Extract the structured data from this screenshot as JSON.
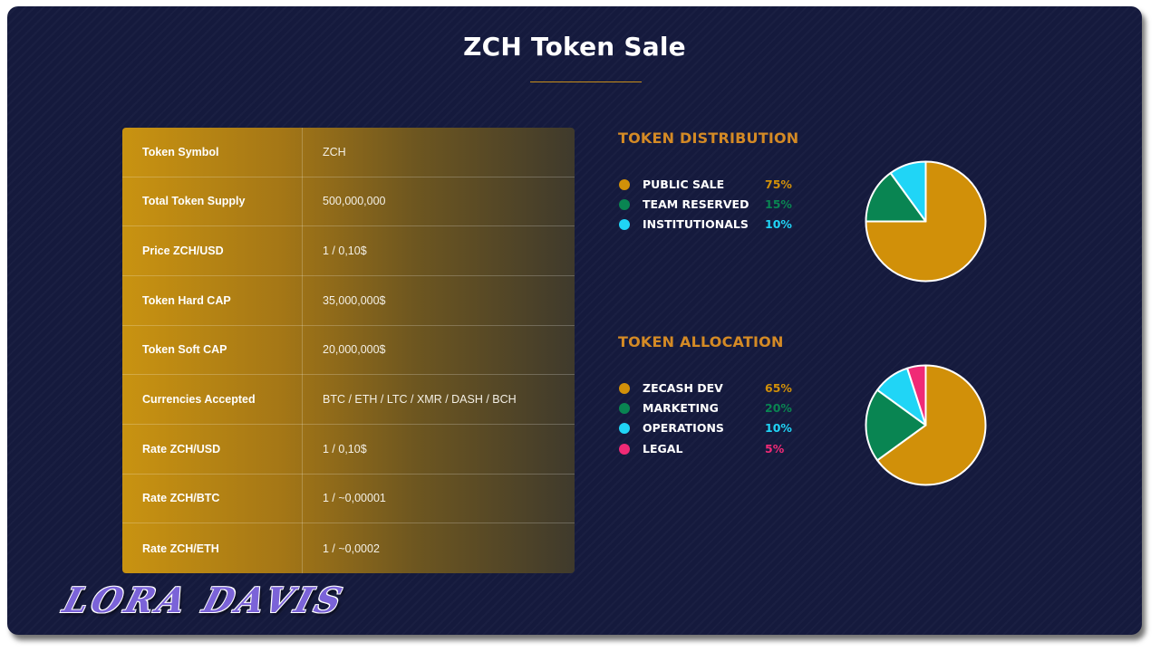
{
  "page": {
    "title": "ZCH Token Sale"
  },
  "token_table": {
    "rows": [
      {
        "label": "Token Symbol",
        "value": "ZCH"
      },
      {
        "label": "Total Token Supply",
        "value": "500,000,000"
      },
      {
        "label": "Price ZCH/USD",
        "value": "1 / 0,10$"
      },
      {
        "label": "Token Hard CAP",
        "value": "35,000,000$"
      },
      {
        "label": "Token Soft CAP",
        "value": "20,000,000$"
      },
      {
        "label": "Currencies Accepted",
        "value": "BTC / ETH / LTC / XMR / DASH / BCH"
      },
      {
        "label": "Rate ZCH/USD",
        "value": "1 / 0,10$"
      },
      {
        "label": "Rate ZCH/BTC",
        "value": "1 / ~0,00001"
      },
      {
        "label": "Rate ZCH/ETH",
        "value": "1 / ~0,0002"
      }
    ]
  },
  "distribution": {
    "title": "TOKEN DISTRIBUTION",
    "items": [
      {
        "label": "PUBLIC SALE",
        "percent": "75%",
        "value": 75,
        "color": "#d19009"
      },
      {
        "label": "TEAM RESERVED",
        "percent": "15%",
        "value": 15,
        "color": "#098552"
      },
      {
        "label": "INSTITUTIONALS",
        "percent": "10%",
        "value": 10,
        "color": "#20d5f6"
      }
    ]
  },
  "allocation": {
    "title": "TOKEN ALLOCATION",
    "items": [
      {
        "label": "ZECASH DEV",
        "percent": "65%",
        "value": 65,
        "color": "#d19009"
      },
      {
        "label": "MARKETING",
        "percent": "20%",
        "value": 20,
        "color": "#098552"
      },
      {
        "label": "OPERATIONS",
        "percent": "10%",
        "value": 10,
        "color": "#20d5f6"
      },
      {
        "label": "LEGAL",
        "percent": "5%",
        "value": 5,
        "color": "#f02a76"
      }
    ]
  },
  "chart_data": [
    {
      "type": "pie",
      "title": "TOKEN DISTRIBUTION",
      "categories": [
        "PUBLIC SALE",
        "TEAM RESERVED",
        "INSTITUTIONALS"
      ],
      "values": [
        75,
        15,
        10
      ],
      "colors": [
        "#d19009",
        "#098552",
        "#20d5f6"
      ],
      "legend": "left"
    },
    {
      "type": "pie",
      "title": "TOKEN ALLOCATION",
      "categories": [
        "ZECASH DEV",
        "MARKETING",
        "OPERATIONS",
        "LEGAL"
      ],
      "values": [
        65,
        20,
        10,
        5
      ],
      "colors": [
        "#d19009",
        "#098552",
        "#20d5f6",
        "#f02a76"
      ],
      "legend": "left"
    }
  ],
  "watermark": {
    "text": "LORA DAVIS"
  }
}
